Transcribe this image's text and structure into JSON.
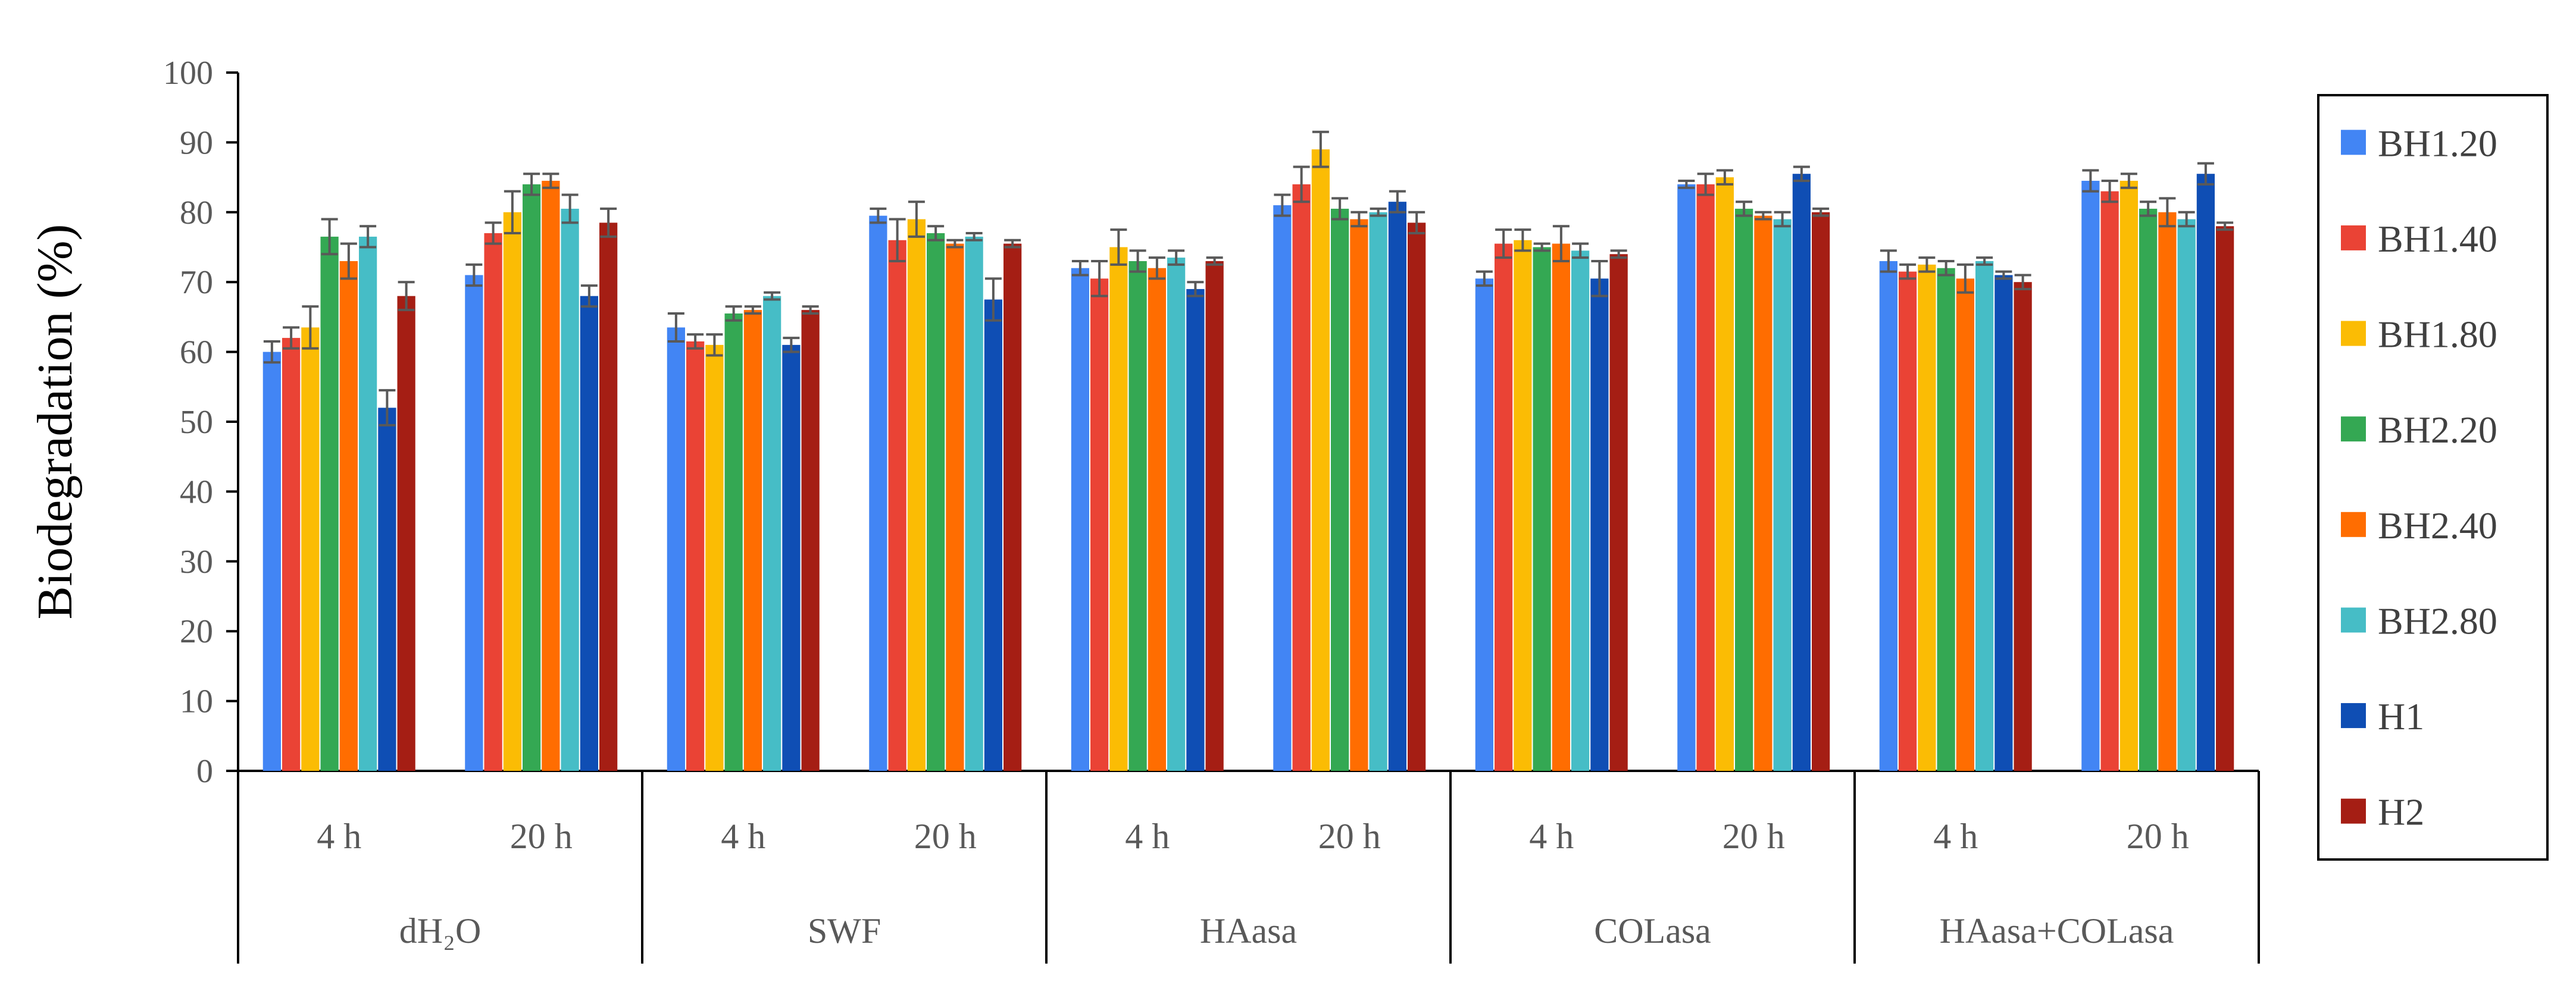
{
  "chart_data": {
    "type": "bar",
    "ylabel": "Biodegradation (%)",
    "xlabel": "",
    "ylim": [
      0,
      100
    ],
    "yticks": [
      "0",
      "10",
      "20",
      "30",
      "40",
      "50",
      "60",
      "70",
      "80",
      "90",
      "100"
    ],
    "grid": false,
    "legend_position": "right",
    "groups": [
      {
        "label": "dH₂O",
        "subs": [
          "4 h",
          "20 h"
        ]
      },
      {
        "label": "SWF",
        "subs": [
          "4 h",
          "20 h"
        ]
      },
      {
        "label": "HAasa",
        "subs": [
          "4 h",
          "20 h"
        ]
      },
      {
        "label": "COLasa",
        "subs": [
          "4 h",
          "20 h"
        ]
      },
      {
        "label": "HAasa+COLasa",
        "subs": [
          "4 h",
          "20 h"
        ]
      }
    ],
    "categories": [
      "dH₂O 4 h",
      "dH₂O 20 h",
      "SWF 4 h",
      "SWF 20 h",
      "HAasa 4 h",
      "HAasa 20 h",
      "COLasa 4 h",
      "COLasa 20 h",
      "HAasa+COLasa 4 h",
      "HAasa+COLasa 20 h"
    ],
    "series": [
      {
        "name": "BH1.20",
        "color": "#4285F4",
        "values": [
          60,
          71,
          63.5,
          79.5,
          72,
          81,
          70.5,
          84,
          73,
          84.5
        ],
        "errors": [
          1.5,
          1.5,
          2,
          1,
          1,
          1.5,
          1,
          0.5,
          1.5,
          1.5
        ]
      },
      {
        "name": "BH1.40",
        "color": "#EA4335",
        "values": [
          62,
          77,
          61.5,
          76,
          70.5,
          84,
          75.5,
          84,
          71.5,
          83
        ],
        "errors": [
          1.5,
          1.5,
          1,
          3,
          2.5,
          2.5,
          2,
          1.5,
          1,
          1.5
        ]
      },
      {
        "name": "BH1.80",
        "color": "#FBBC04",
        "values": [
          63.5,
          80,
          61,
          79,
          75,
          89,
          76,
          85,
          72.5,
          84.5
        ],
        "errors": [
          3,
          3,
          1.5,
          2.5,
          2.5,
          2.5,
          1.5,
          1,
          1,
          1
        ]
      },
      {
        "name": "BH2.20",
        "color": "#34A853",
        "values": [
          76.5,
          84,
          65.5,
          77,
          73,
          80.5,
          75,
          80.5,
          72,
          80.5
        ],
        "errors": [
          2.5,
          1.5,
          1,
          1,
          1.5,
          1.5,
          0.5,
          1,
          1,
          1
        ]
      },
      {
        "name": "BH2.40",
        "color": "#FF6D01",
        "values": [
          73,
          84.5,
          66,
          75.5,
          72,
          79,
          75.5,
          79.5,
          70.5,
          80
        ],
        "errors": [
          2.5,
          1,
          0.5,
          0.5,
          1.5,
          1,
          2.5,
          0.5,
          2,
          2
        ]
      },
      {
        "name": "BH2.80",
        "color": "#46BDC6",
        "values": [
          76.5,
          80.5,
          68,
          76.5,
          73.5,
          80,
          74.5,
          79,
          73,
          79
        ],
        "errors": [
          1.5,
          2,
          0.5,
          0.5,
          1,
          0.5,
          1,
          1,
          0.5,
          1
        ]
      },
      {
        "name": "H1",
        "color": "#0F4EB4",
        "values": [
          52,
          68,
          61,
          67.5,
          69,
          81.5,
          70.5,
          85.5,
          71,
          85.5
        ],
        "errors": [
          2.5,
          1.5,
          1,
          3,
          1,
          1.5,
          2.5,
          1,
          0.5,
          1.5
        ]
      },
      {
        "name": "H2",
        "color": "#A51E14",
        "values": [
          68,
          78.5,
          66,
          75.5,
          73,
          78.5,
          74,
          80,
          70,
          78
        ],
        "errors": [
          2,
          2,
          0.5,
          0.5,
          0.5,
          1.5,
          0.5,
          0.5,
          1,
          0.5
        ]
      }
    ]
  }
}
